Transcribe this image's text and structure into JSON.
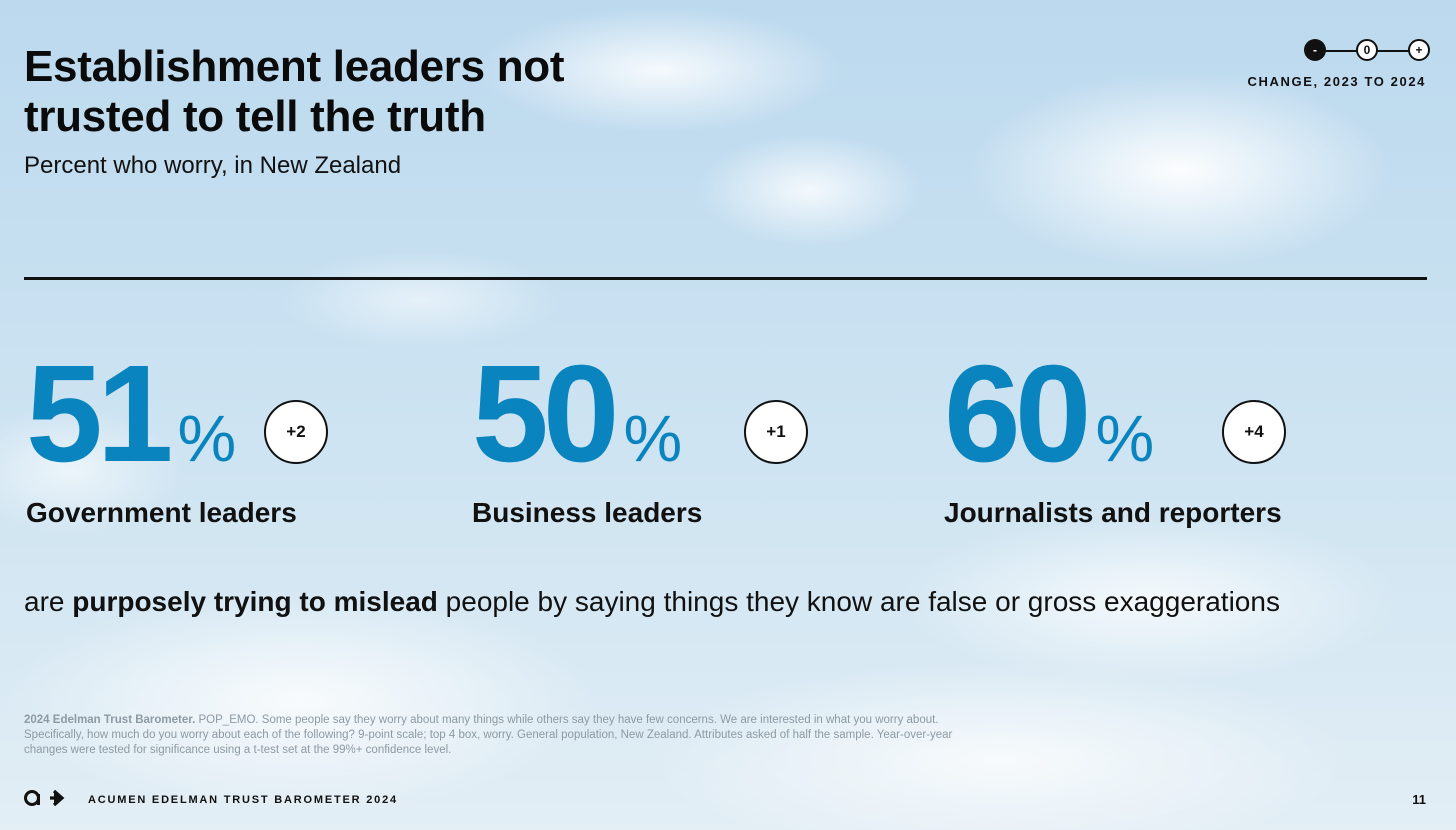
{
  "title": "Establishment leaders not trusted to tell the truth",
  "subtitle": "Percent who worry, in New Zealand",
  "legend": {
    "minus_symbol": "-",
    "zero_symbol": "0",
    "plus_symbol": "+",
    "label": "CHANGE, 2023 TO 2024"
  },
  "stats": [
    {
      "value": "51",
      "unit": "%",
      "change": "+2",
      "label": "Government leaders"
    },
    {
      "value": "50",
      "unit": "%",
      "change": "+1",
      "label": "Business leaders"
    },
    {
      "value": "60",
      "unit": "%",
      "change": "+4",
      "label": "Journalists and reporters"
    }
  ],
  "statement": {
    "prefix": "are ",
    "emphasis": "purposely trying to mislead",
    "suffix": " people by saying things they know are false or gross exaggerations"
  },
  "footnote": {
    "source": "2024 Edelman Trust Barometer.",
    "text": " POP_EMO. Some people say they worry about many things while others say they have few concerns. We are interested in what you worry about. Specifically, how much do you worry about each of the following? 9-point scale; top 4 box, worry. General population, New Zealand. Attributes asked of half the sample. Year-over-year changes were tested for significance using a t-test set at the 99%+ confidence level."
  },
  "footer": {
    "brand": "ACUMEN EDELMAN TRUST BAROMETER 2024",
    "page_number": "11",
    "logo_icon": "edelman-logo-icon"
  },
  "colors": {
    "accent": "#0a84be",
    "text": "#111111",
    "footnote": "#8d9aa3"
  }
}
